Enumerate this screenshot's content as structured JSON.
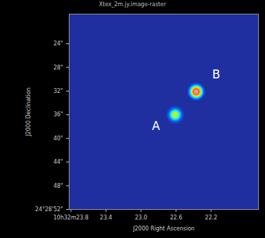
{
  "chart_data": {
    "type": "image",
    "title": "Xtex_2m.jy.image-raster",
    "x_label": "J2000 Right Ascension",
    "y_label": "J2000 Declination",
    "xlim": [
      23.82,
      21.66
    ],
    "xticks": [
      {
        "value": 23.8,
        "label": "10h32m23.8"
      },
      {
        "value": 23.4,
        "label": "23.4"
      },
      {
        "value": 23.0,
        "label": "23.0"
      },
      {
        "value": 22.6,
        "label": "22.6"
      },
      {
        "value": 22.2,
        "label": "22.2"
      }
    ],
    "ylim": [
      52,
      19
    ],
    "yticks": [
      {
        "value": 24,
        "label": "24\""
      },
      {
        "value": 28,
        "label": "28\""
      },
      {
        "value": 32,
        "label": "32\""
      },
      {
        "value": 36,
        "label": "36\""
      },
      {
        "value": 40,
        "label": "40\""
      },
      {
        "value": 44,
        "label": "44\""
      },
      {
        "value": 48,
        "label": "48\""
      },
      {
        "value": 52,
        "label": "24°28'52\""
      }
    ],
    "sources": [
      {
        "name": "A",
        "x": 22.61,
        "y": 36.0,
        "peak": 0.6
      },
      {
        "name": "B",
        "x": 22.37,
        "y": 32.1,
        "peak": 1.0
      }
    ],
    "colorlim": [
      0,
      1
    ]
  }
}
